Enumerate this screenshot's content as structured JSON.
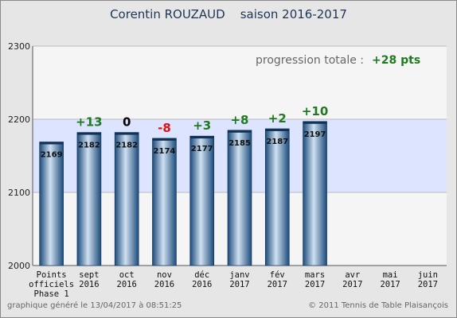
{
  "page": {
    "title_name": "Corentin ROUZAUD",
    "title_season": "saison 2016-2017",
    "footer_left": "graphique généré le 13/04/2017 à 08:51:25",
    "footer_right": "© 2011 Tennis de Table Plaisançois"
  },
  "chart_data": {
    "type": "bar",
    "annotation_label": "progression totale :",
    "annotation_value": "+28 pts",
    "categories": [
      [
        "Points",
        "officiels",
        "Phase 1"
      ],
      [
        "sept",
        "2016"
      ],
      [
        "oct",
        "2016"
      ],
      [
        "nov",
        "2016"
      ],
      [
        "déc",
        "2016"
      ],
      [
        "janv",
        "2017"
      ],
      [
        "fév",
        "2017"
      ],
      [
        "mars",
        "2017"
      ],
      [
        "avr",
        "2017"
      ],
      [
        "mai",
        "2017"
      ],
      [
        "juin",
        "2017"
      ]
    ],
    "values": [
      2169,
      2182,
      2182,
      2174,
      2177,
      2185,
      2187,
      2197,
      null,
      null,
      null
    ],
    "deltas": [
      "",
      "+13",
      "0",
      "-8",
      "+3",
      "+8",
      "+2",
      "+10",
      "",
      "",
      ""
    ],
    "ylim": [
      2000,
      2300
    ],
    "yticks": [
      "2000",
      "2100",
      "2200",
      "2300"
    ],
    "highlight_band": [
      2100,
      2200
    ],
    "grid": true,
    "colors": {
      "bar_dark": "#1b4a7a",
      "bar_light": "#cfe0f0",
      "band": "#dce4ff",
      "plot_bg": "#f5f5f5",
      "positive": "#1f7a1f",
      "negative": "#e01010",
      "zero": "#000000"
    }
  }
}
